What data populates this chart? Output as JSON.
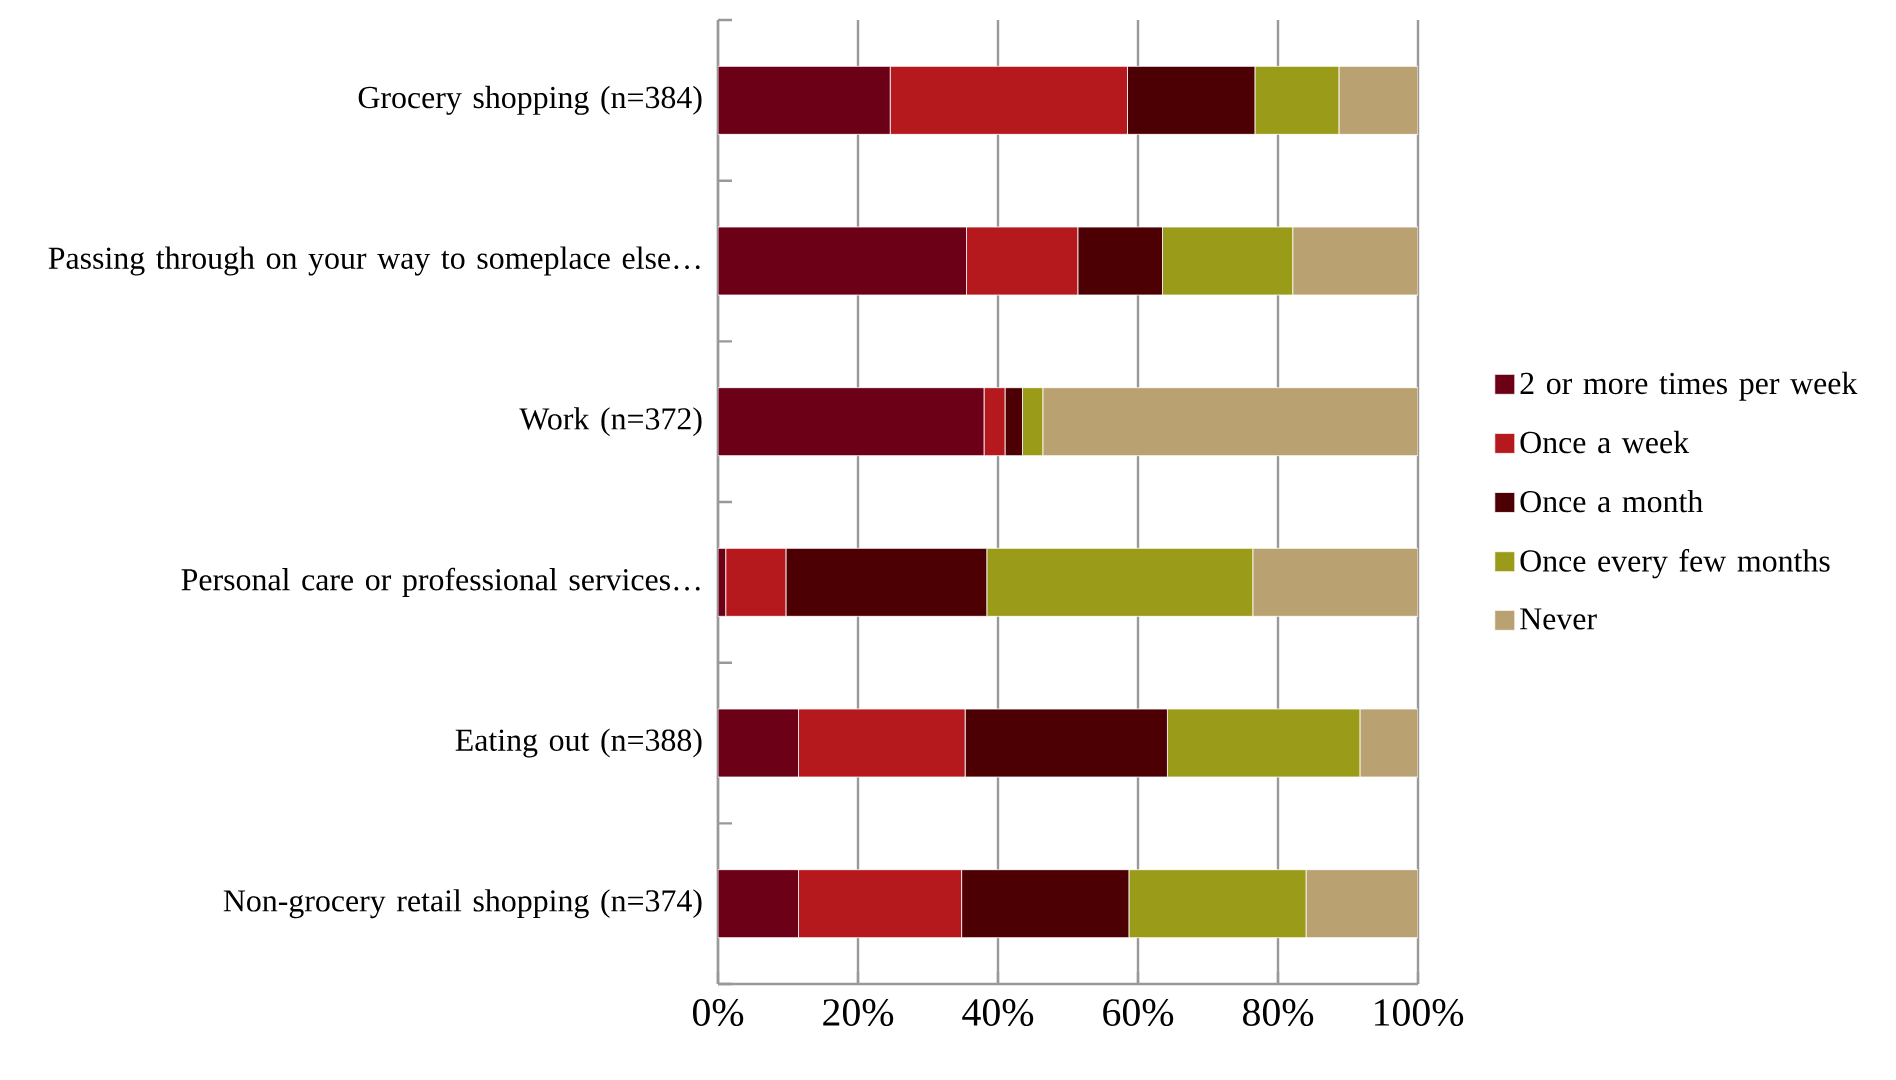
{
  "chart_data": {
    "type": "bar",
    "orientation": "horizontal",
    "stacked": true,
    "categories": [
      "Grocery shopping (n=384)",
      "Passing through on your way to someplace else…",
      "Work (n=372)",
      "Personal care or professional services…",
      "Eating out (n=388)",
      "Non-grocery retail shopping (n=374)"
    ],
    "series": [
      {
        "name": "2 or more times per week",
        "color": "#6b0016",
        "values": [
          24.6,
          35.5,
          38,
          1.1,
          11.5,
          11.5
        ]
      },
      {
        "name": "Once a week",
        "color": "#b5191e",
        "values": [
          33.9,
          15.9,
          3,
          8.6,
          23.8,
          23.3
        ]
      },
      {
        "name": "Once a month",
        "color": "#4c0004",
        "values": [
          18.2,
          12.1,
          2.5,
          28.7,
          28.9,
          23.9
        ]
      },
      {
        "name": "Once every few months",
        "color": "#9b9b1a",
        "values": [
          12,
          18.6,
          2.9,
          38,
          27.5,
          25.3
        ]
      },
      {
        "name": "Never",
        "color": "#baa171",
        "values": [
          11.3,
          17.9,
          53.6,
          23.6,
          8.3,
          16
        ]
      }
    ],
    "xlim": [
      0,
      100
    ],
    "xticks": [
      {
        "value": 0,
        "label": "0%"
      },
      {
        "value": 20,
        "label": "20%"
      },
      {
        "value": 40,
        "label": "40%"
      },
      {
        "value": 60,
        "label": "60%"
      },
      {
        "value": 80,
        "label": "80%"
      },
      {
        "value": 100,
        "label": "100%"
      }
    ],
    "grid": "x",
    "legend": "right"
  }
}
